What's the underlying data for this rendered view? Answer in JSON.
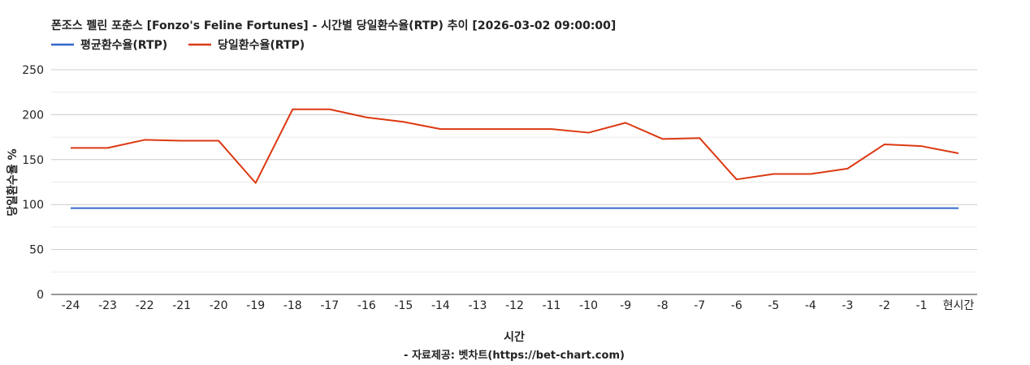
{
  "chart_data": {
    "type": "line",
    "title": "폰조스 펠린 포춘스 [Fonzo's Feline Fortunes] - 시간별 당일환수율(RTP) 추이 [2026-03-02 09:00:00]",
    "xlabel": "시간",
    "ylabel": "당일환수율 %",
    "source": "- 자료제공: 벳차트(https://bet-chart.com)",
    "categories": [
      "-24",
      "-23",
      "-22",
      "-21",
      "-20",
      "-19",
      "-18",
      "-17",
      "-16",
      "-15",
      "-14",
      "-13",
      "-12",
      "-11",
      "-10",
      "-9",
      "-8",
      "-7",
      "-6",
      "-5",
      "-4",
      "-3",
      "-2",
      "-1",
      "현시간"
    ],
    "ylim": [
      0,
      250
    ],
    "yticks": [
      0,
      50,
      100,
      150,
      200,
      250
    ],
    "grid": true,
    "legend_position": "top-left",
    "series": [
      {
        "name": "평균환수율(RTP)",
        "color": "#3366cc",
        "values": [
          96,
          96,
          96,
          96,
          96,
          96,
          96,
          96,
          96,
          96,
          96,
          96,
          96,
          96,
          96,
          96,
          96,
          96,
          96,
          96,
          96,
          96,
          96,
          96,
          96
        ]
      },
      {
        "name": "당일환수율(RTP)",
        "color": "#dc3912",
        "values": [
          163,
          163,
          172,
          171,
          171,
          124,
          206,
          206,
          197,
          192,
          184,
          184,
          184,
          184,
          180,
          191,
          173,
          174,
          128,
          134,
          134,
          140,
          167,
          165,
          157
        ]
      }
    ]
  }
}
